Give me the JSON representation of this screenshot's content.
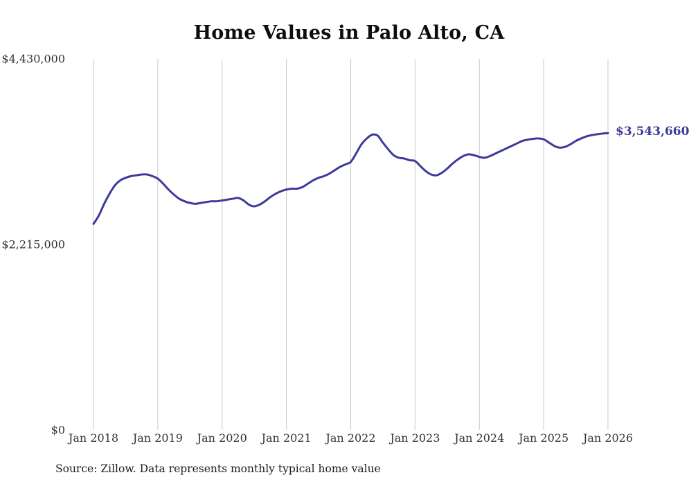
{
  "chart_data": {
    "type": "line",
    "title": "Home Values in Palo Alto, CA",
    "xlabel": "",
    "ylabel": "",
    "ylim": [
      0,
      4430000
    ],
    "grid": "vertical-only",
    "line_color": "#3d3a99",
    "grid_color": "#c9c9c9",
    "x_tick_labels": [
      "Jan 2018",
      "Jan 2019",
      "Jan 2020",
      "Jan 2021",
      "Jan 2022",
      "Jan 2023",
      "Jan 2024",
      "Jan 2025",
      "Jan 2026"
    ],
    "y_ticks": [
      {
        "value": 0,
        "label": "$0"
      },
      {
        "value": 2215000,
        "label": "$2,215,000"
      },
      {
        "value": 4430000,
        "label": "$4,430,000"
      }
    ],
    "latest_value_label": "$3,543,660",
    "latest_value": 3543660,
    "source_note": "Source: Zillow. Data represents monthly typical home value",
    "series": [
      {
        "name": "Typical home value",
        "start_month": "2018-01",
        "end_month": "2026-01",
        "frequency": "monthly",
        "values": [
          2460000,
          2560000,
          2700000,
          2820000,
          2920000,
          2980000,
          3010000,
          3030000,
          3040000,
          3050000,
          3050000,
          3030000,
          3000000,
          2940000,
          2870000,
          2810000,
          2760000,
          2730000,
          2710000,
          2700000,
          2710000,
          2720000,
          2730000,
          2730000,
          2740000,
          2750000,
          2760000,
          2770000,
          2740000,
          2690000,
          2670000,
          2690000,
          2730000,
          2780000,
          2820000,
          2850000,
          2870000,
          2880000,
          2880000,
          2900000,
          2940000,
          2980000,
          3010000,
          3030000,
          3060000,
          3100000,
          3140000,
          3170000,
          3200000,
          3300000,
          3410000,
          3480000,
          3525000,
          3515000,
          3430000,
          3350000,
          3280000,
          3250000,
          3240000,
          3220000,
          3210000,
          3150000,
          3090000,
          3050000,
          3040000,
          3070000,
          3120000,
          3180000,
          3230000,
          3270000,
          3290000,
          3280000,
          3260000,
          3250000,
          3270000,
          3300000,
          3330000,
          3360000,
          3390000,
          3420000,
          3450000,
          3465000,
          3475000,
          3480000,
          3470000,
          3430000,
          3390000,
          3370000,
          3380000,
          3410000,
          3450000,
          3480000,
          3505000,
          3520000,
          3530000,
          3538000,
          3543660
        ]
      }
    ]
  }
}
